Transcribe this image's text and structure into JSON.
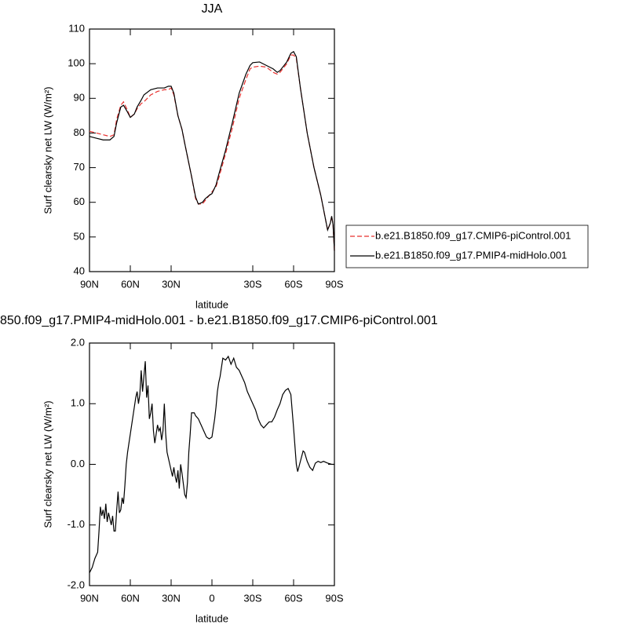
{
  "chart_data": [
    {
      "type": "line",
      "title": "JJA",
      "xlabel": "latitude",
      "ylabel": "Surf clearsky net LW (W/m²)",
      "xlim": [
        90,
        -90
      ],
      "ylim": [
        40,
        110
      ],
      "xticks": [
        {
          "value": 90,
          "label": "90N"
        },
        {
          "value": 60,
          "label": "60N"
        },
        {
          "value": 30,
          "label": "30N"
        },
        {
          "value": -30,
          "label": "30S"
        },
        {
          "value": -60,
          "label": "60S"
        },
        {
          "value": -90,
          "label": "90S"
        }
      ],
      "yticks": [
        40,
        50,
        60,
        70,
        80,
        90,
        100,
        110
      ],
      "x": [
        90,
        85,
        80,
        75,
        72,
        70,
        67,
        65,
        62,
        60,
        57,
        55,
        52,
        50,
        45,
        40,
        35,
        32,
        30,
        28,
        25,
        22,
        20,
        15,
        12,
        10,
        7,
        5,
        2,
        0,
        -3,
        -5,
        -10,
        -15,
        -20,
        -25,
        -28,
        -30,
        -35,
        -40,
        -45,
        -48,
        -50,
        -55,
        -58,
        -60,
        -62,
        -65,
        -70,
        -75,
        -80,
        -83,
        -85,
        -87,
        -88,
        -89,
        -90
      ],
      "legend": "right",
      "series": [
        {
          "name": "b.e21.B1850.f09_g17.CMIP6-piControl.001",
          "color": "#e8312f",
          "dash": true,
          "values": [
            80.5,
            80,
            79.5,
            79,
            79.5,
            84,
            88,
            89,
            86.5,
            84.5,
            85.5,
            87,
            88.5,
            89,
            91,
            92,
            92.5,
            92.5,
            93,
            91,
            85,
            81,
            77,
            67.5,
            61,
            59.5,
            59.5,
            60.5,
            62,
            63,
            64.5,
            67,
            74,
            81.5,
            90,
            95.5,
            98.5,
            99,
            99.3,
            99,
            97.5,
            97,
            97.5,
            100,
            102.5,
            102.5,
            101.5,
            93,
            80,
            70,
            62,
            56,
            52,
            54,
            56,
            53.5,
            46
          ]
        },
        {
          "name": "b.e21.B1850.f09_g17.PMIP4-midHolo.001",
          "color": "#000000",
          "dash": false,
          "values": [
            79,
            78.5,
            78,
            78,
            79,
            83,
            87.5,
            88,
            86,
            84.5,
            85.5,
            87.5,
            89.5,
            91,
            92.5,
            93,
            93,
            93.5,
            93.5,
            91.5,
            85,
            81,
            77,
            67.5,
            61.5,
            59.5,
            60,
            61,
            62,
            62.5,
            65,
            68,
            75,
            83,
            91.5,
            97,
            99.5,
            100.3,
            100.5,
            99.5,
            98.5,
            97.5,
            98,
            100.5,
            103,
            103.5,
            102,
            93,
            80,
            70,
            62,
            56,
            52,
            54,
            56,
            53.5,
            46
          ]
        }
      ]
    },
    {
      "type": "line",
      "title": "850.f09_g17.PMIP4-midHolo.001 - b.e21.B1850.f09_g17.CMIP6-piControl.001",
      "xlabel": "latitude",
      "ylabel": "Surf clearsky net LW (W/m²)",
      "xlim": [
        90,
        -90
      ],
      "ylim": [
        -2,
        2
      ],
      "xticks": [
        {
          "value": 90,
          "label": "90N"
        },
        {
          "value": 60,
          "label": "60N"
        },
        {
          "value": 30,
          "label": "30N"
        },
        0,
        {
          "value": -30,
          "label": "30S"
        },
        {
          "value": -60,
          "label": "60S"
        },
        {
          "value": -90,
          "label": "90S"
        }
      ],
      "yticks": [
        {
          "value": -2,
          "label": "-2.0"
        },
        {
          "value": -1,
          "label": "-1.0"
        },
        {
          "value": 0,
          "label": "0.0"
        },
        {
          "value": 1,
          "label": "1.0"
        },
        {
          "value": 2,
          "label": "2.0"
        }
      ],
      "x": [
        90,
        88,
        86,
        84,
        83,
        82,
        81,
        80,
        79,
        78,
        77,
        76,
        75,
        74,
        73,
        72,
        71,
        70,
        69,
        68,
        67,
        66,
        65,
        64,
        63,
        62,
        60,
        58,
        56,
        55,
        54,
        53,
        52,
        51,
        50,
        49,
        48,
        47,
        46,
        45,
        44,
        43,
        42,
        41,
        40,
        39,
        38,
        37,
        36,
        35,
        34,
        33,
        32,
        31,
        30,
        29,
        28,
        27,
        26,
        25,
        24,
        23,
        22,
        20,
        19,
        18,
        17,
        16,
        15,
        13,
        12,
        10,
        8,
        6,
        4,
        2,
        0,
        -1,
        -2,
        -3,
        -4,
        -5,
        -6,
        -8,
        -10,
        -12,
        -14,
        -16,
        -18,
        -20,
        -22,
        -24,
        -26,
        -28,
        -30,
        -32,
        -34,
        -36,
        -38,
        -40,
        -42,
        -44,
        -46,
        -48,
        -50,
        -52,
        -54,
        -56,
        -58,
        -60,
        -62,
        -63,
        -65,
        -67,
        -68,
        -70,
        -72,
        -74,
        -76,
        -78,
        -80,
        -82,
        -85,
        -88,
        -90
      ],
      "series": [
        {
          "name": null,
          "color": "#000000",
          "dash": false,
          "values": [
            -1.79,
            -1.7,
            -1.55,
            -1.45,
            -1.1,
            -0.7,
            -0.85,
            -0.75,
            -0.9,
            -0.65,
            -0.95,
            -0.8,
            -0.9,
            -1.0,
            -0.85,
            -1.1,
            -1.1,
            -0.75,
            -0.45,
            -0.8,
            -0.75,
            -0.55,
            -0.65,
            -0.35,
            0.0,
            0.2,
            0.5,
            0.8,
            1.1,
            1.2,
            1.0,
            1.15,
            1.55,
            1.2,
            1.45,
            1.7,
            1.1,
            1.3,
            0.75,
            0.85,
            1.0,
            0.55,
            0.35,
            0.5,
            0.65,
            0.55,
            0.6,
            0.4,
            0.55,
            1.0,
            0.5,
            0.2,
            0.1,
            0.0,
            -0.1,
            -0.2,
            -0.05,
            -0.2,
            -0.3,
            -0.1,
            -0.4,
            0.0,
            -0.15,
            -0.5,
            -0.55,
            -0.3,
            0.2,
            0.5,
            0.85,
            0.85,
            0.8,
            0.75,
            0.65,
            0.55,
            0.45,
            0.42,
            0.45,
            0.6,
            0.75,
            0.95,
            1.2,
            1.35,
            1.45,
            1.75,
            1.72,
            1.78,
            1.65,
            1.75,
            1.6,
            1.55,
            1.45,
            1.35,
            1.2,
            1.1,
            1.0,
            0.9,
            0.75,
            0.65,
            0.6,
            0.65,
            0.7,
            0.7,
            0.78,
            0.9,
            1.0,
            1.15,
            1.22,
            1.25,
            1.15,
            0.6,
            0.0,
            -0.12,
            0.05,
            0.22,
            0.2,
            0.05,
            -0.05,
            -0.1,
            0.02,
            0.05,
            0.03,
            0.05,
            0.02,
            0.0,
            0.0
          ]
        }
      ]
    }
  ]
}
